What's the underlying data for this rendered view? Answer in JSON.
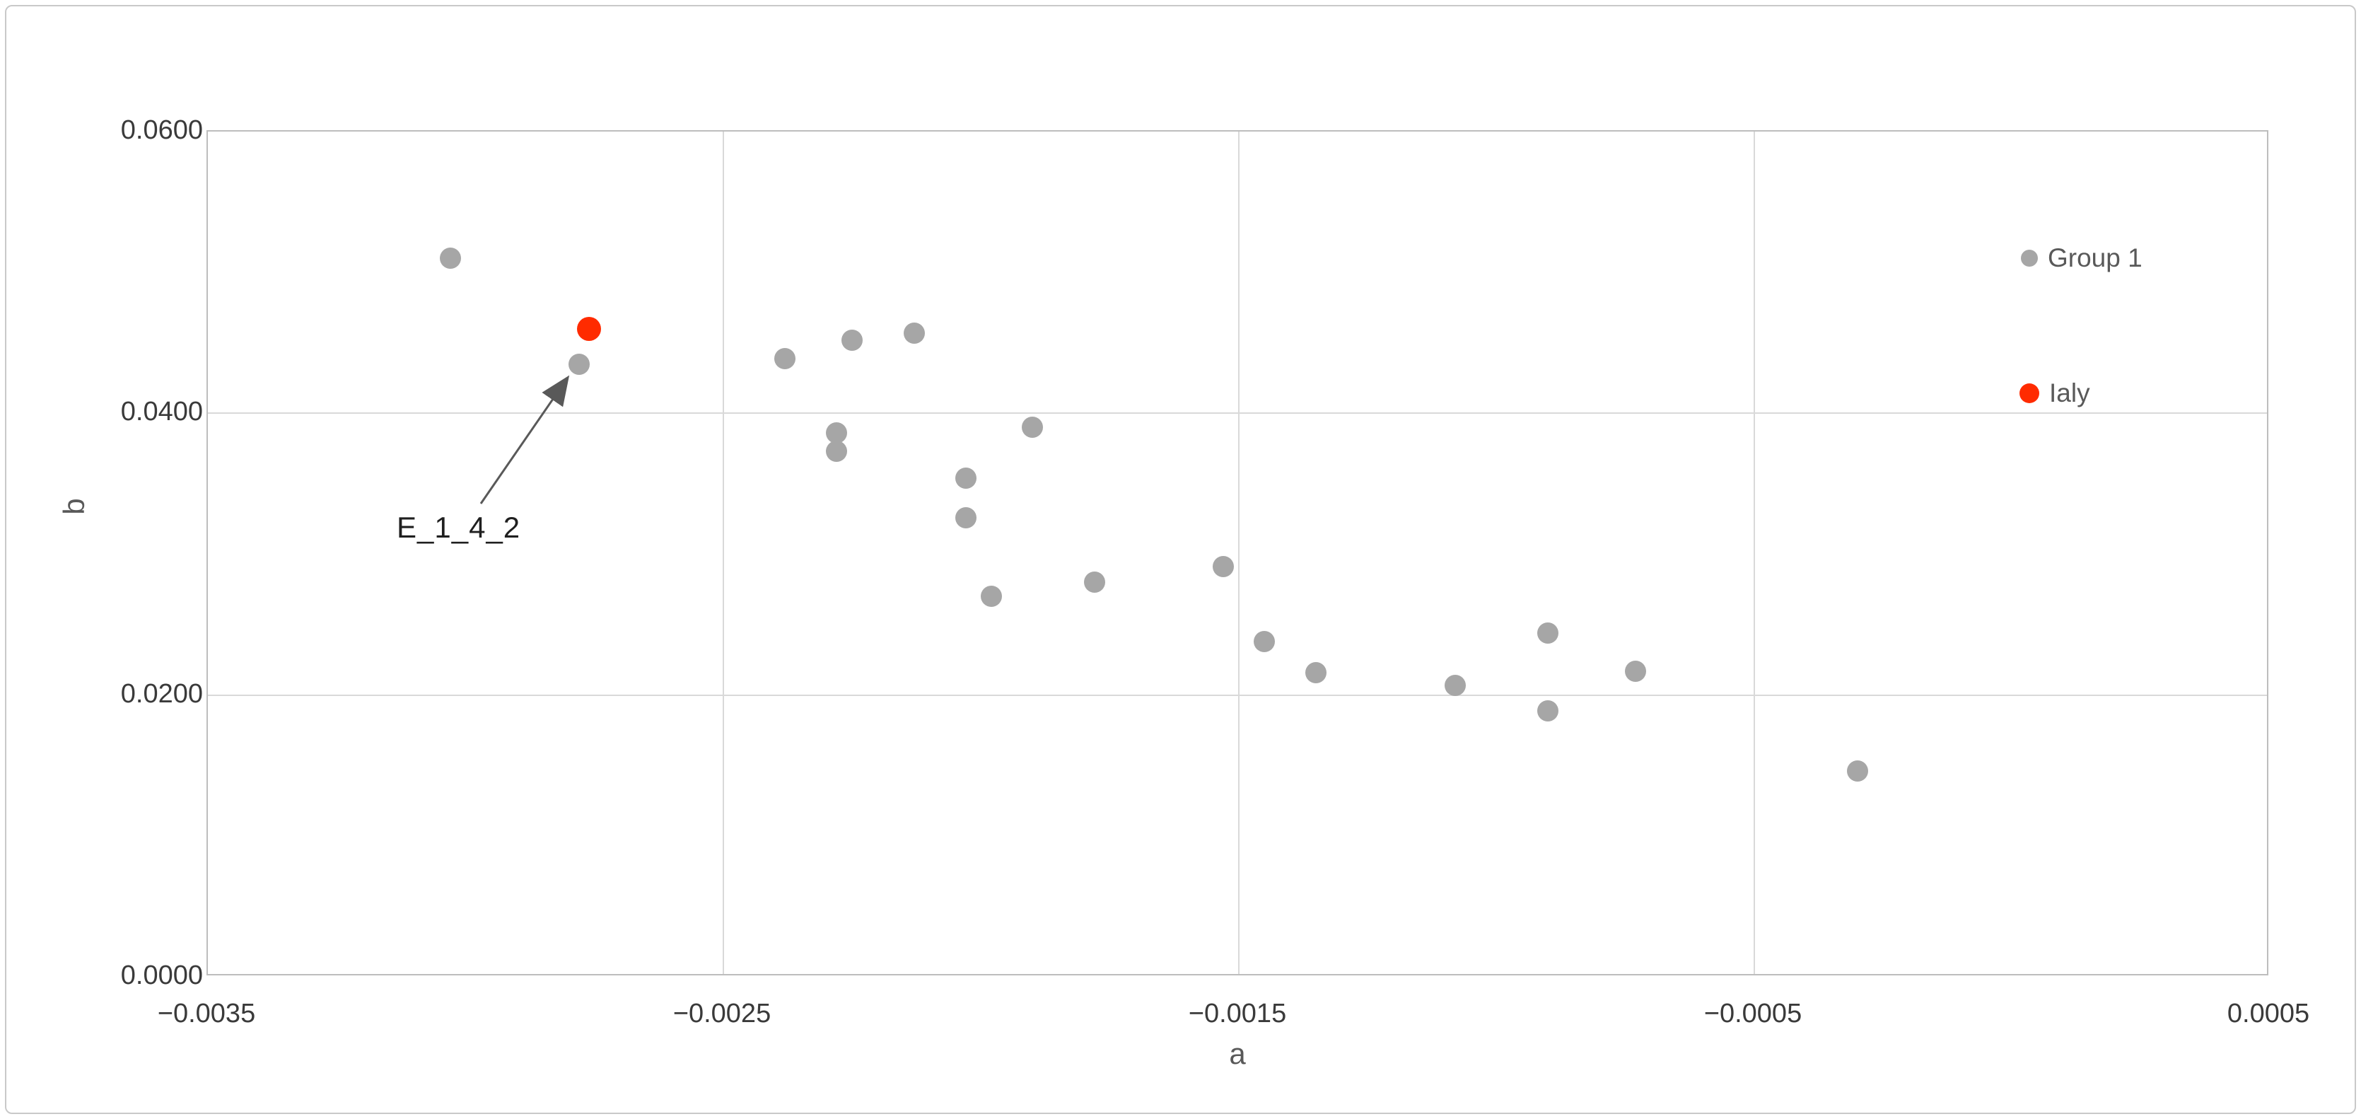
{
  "chart_data": {
    "type": "scatter",
    "title": "",
    "xlabel": "a",
    "ylabel": "b",
    "xlim": [
      -0.0035,
      0.0005
    ],
    "ylim": [
      0.0,
      0.06
    ],
    "grid": true,
    "legend_position": "inside-right",
    "x_ticks": [
      {
        "value": -0.0035,
        "label": "−0.0035"
      },
      {
        "value": -0.0025,
        "label": "−0.0025"
      },
      {
        "value": -0.0015,
        "label": "−0.0015"
      },
      {
        "value": -0.0005,
        "label": "−0.0005"
      },
      {
        "value": 0.0005,
        "label": "0.0005"
      }
    ],
    "y_ticks": [
      {
        "value": 0.0,
        "label": "0.0000"
      },
      {
        "value": 0.02,
        "label": "0.0200"
      },
      {
        "value": 0.04,
        "label": "0.0400"
      },
      {
        "value": 0.06,
        "label": "0.0600"
      }
    ],
    "series": [
      {
        "name": "Group 1",
        "color": "#a6a6a6",
        "marker_size": 30,
        "points": [
          {
            "x": -0.00303,
            "y": 0.051
          },
          {
            "x": -0.00278,
            "y": 0.0435
          },
          {
            "x": -0.00238,
            "y": 0.0439
          },
          {
            "x": -0.00225,
            "y": 0.0452
          },
          {
            "x": -0.00213,
            "y": 0.0457
          },
          {
            "x": -0.00228,
            "y": 0.0386
          },
          {
            "x": -0.00228,
            "y": 0.0373
          },
          {
            "x": -0.0019,
            "y": 0.039
          },
          {
            "x": -0.00203,
            "y": 0.0354
          },
          {
            "x": -0.00203,
            "y": 0.0326
          },
          {
            "x": -0.00198,
            "y": 0.027
          },
          {
            "x": -0.00178,
            "y": 0.028
          },
          {
            "x": -0.00153,
            "y": 0.0291
          },
          {
            "x": -0.00145,
            "y": 0.0238
          },
          {
            "x": -0.00135,
            "y": 0.0216
          },
          {
            "x": -0.00108,
            "y": 0.0207
          },
          {
            "x": -0.0009,
            "y": 0.0244
          },
          {
            "x": -0.0009,
            "y": 0.0189
          },
          {
            "x": -0.00073,
            "y": 0.0217
          },
          {
            "x": -0.0003,
            "y": 0.0146
          }
        ]
      },
      {
        "name": "Ialy",
        "color": "#ff2b00",
        "marker_size": 34,
        "points": [
          {
            "x": -0.00276,
            "y": 0.046
          }
        ]
      }
    ],
    "annotation": {
      "text": "E_1_4_2",
      "target": {
        "x": -0.00278,
        "y": 0.0435
      }
    }
  },
  "legend": {
    "items": [
      {
        "label": "Group 1",
        "color": "#a6a6a6",
        "marker_size": 24
      },
      {
        "label": "Ialy",
        "color": "#ff2b00",
        "marker_size": 28
      }
    ]
  },
  "colors": {
    "gridline": "#d9d9d9",
    "plot_border": "#bdbdbd",
    "frame_border": "#c9c9c9",
    "tick_text": "#3a3a3a",
    "legend_text": "#595959",
    "axis_title": "#595959",
    "annotation_arrow": "#595959",
    "annotation_text": "#1f1f1f"
  }
}
